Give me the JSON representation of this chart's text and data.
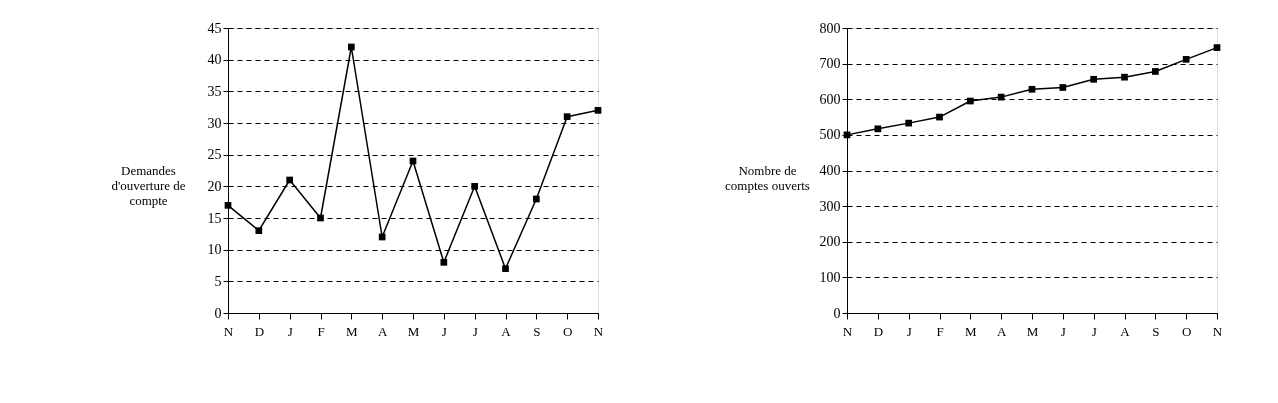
{
  "chart_data": [
    {
      "type": "line",
      "ylabel": "Demandes d'ouverture de compte",
      "categories": [
        "N",
        "D",
        "J",
        "F",
        "M",
        "A",
        "M",
        "J",
        "J",
        "A",
        "S",
        "O",
        "N"
      ],
      "series": [
        {
          "color": "#000000",
          "values": [
            17,
            13,
            21,
            15,
            42,
            12,
            24,
            8,
            20,
            7,
            18,
            31,
            32
          ]
        }
      ],
      "ylim": [
        0,
        45
      ],
      "yticks": [
        0,
        5,
        10,
        15,
        20,
        25,
        30,
        35,
        40,
        45
      ],
      "grid": "y",
      "marker": "square",
      "line_style": "solid"
    },
    {
      "type": "line",
      "ylabel": "Nombre de comptes ouverts",
      "categories": [
        "N",
        "D",
        "J",
        "F",
        "M",
        "A",
        "M",
        "J",
        "J",
        "A",
        "S",
        "O",
        "N"
      ],
      "series": [
        {
          "color": "#000000",
          "values": [
            500,
            517,
            533,
            550,
            595,
            606,
            628,
            633,
            656,
            662,
            678,
            712,
            745
          ]
        }
      ],
      "ylim": [
        0,
        800
      ],
      "yticks": [
        0,
        100,
        200,
        300,
        400,
        500,
        600,
        700,
        800
      ],
      "grid": "y",
      "marker": "square",
      "line_style": "solid"
    }
  ]
}
